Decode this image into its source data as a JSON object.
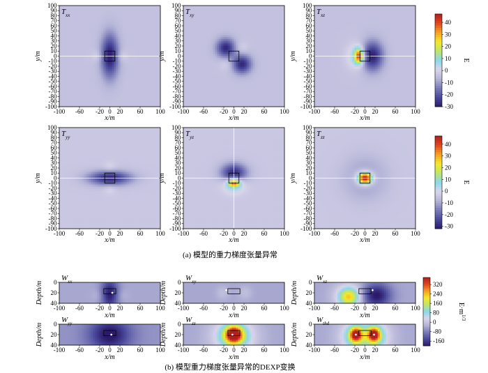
{
  "captions": {
    "a": "(a) 模型的重力梯度张量异常",
    "b": "(b) 模型重力梯度张量异常的DEXP变换"
  },
  "colormap": [
    "#2b1a6b",
    "#4a4a9c",
    "#7b7bb8",
    "#b5b5d8",
    "#d9d6ea",
    "#88d8ea",
    "#bfe56a",
    "#f4e829",
    "#f7a020",
    "#e0451e",
    "#b0201c"
  ],
  "chart_data": [
    {
      "type": "heatmap",
      "group": "a",
      "title": "Txx",
      "title_base": "T",
      "title_sub": "xx",
      "xlabel": "x/m",
      "ylabel": "y/m",
      "xlim": [
        -100,
        100
      ],
      "ylim": [
        -100,
        100
      ],
      "xticks": [
        -100,
        -60,
        -20,
        0,
        20,
        60,
        100
      ],
      "yticks": [
        100,
        90,
        80,
        70,
        60,
        50,
        40,
        30,
        20,
        10,
        0,
        -10,
        -20,
        -30,
        -40,
        -50,
        -60,
        -70,
        -80,
        -90,
        -100
      ],
      "crosshair": "horizontal",
      "anomalies": [
        {
          "x": 0,
          "y": 0,
          "value": -26,
          "sx": 12,
          "sy": 30
        },
        {
          "x": -25,
          "y": 0,
          "value": 4,
          "sx": 8,
          "sy": 8
        },
        {
          "x": 25,
          "y": 0,
          "value": 4,
          "sx": 8,
          "sy": 8
        }
      ],
      "baseline": -4
    },
    {
      "type": "heatmap",
      "group": "a",
      "title": "Txy",
      "title_base": "T",
      "title_sub": "xy",
      "xlabel": "x/m",
      "ylabel": "y/m",
      "xlim": [
        -100,
        100
      ],
      "ylim": [
        -100,
        100
      ],
      "xticks": [
        -100,
        -60,
        -20,
        0,
        20,
        60,
        100
      ],
      "yticks": [
        100,
        90,
        80,
        70,
        60,
        50,
        40,
        30,
        20,
        10,
        0,
        -10,
        -20,
        -30,
        -40,
        -50,
        -60,
        -70,
        -80,
        -90,
        -100
      ],
      "crosshair": "none",
      "anomalies": [
        {
          "x": -16,
          "y": 16,
          "value": -24,
          "sx": 13,
          "sy": 13
        },
        {
          "x": 16,
          "y": -16,
          "value": -24,
          "sx": 13,
          "sy": 13
        },
        {
          "x": 16,
          "y": 16,
          "value": 4,
          "sx": 9,
          "sy": 9
        },
        {
          "x": -16,
          "y": -16,
          "value": 4,
          "sx": 9,
          "sy": 9
        }
      ],
      "baseline": -4
    },
    {
      "type": "heatmap",
      "group": "a",
      "title": "Txz",
      "title_base": "T",
      "title_sub": "xz",
      "xlabel": "x/m",
      "ylabel": "y/m",
      "xlim": [
        -100,
        100
      ],
      "ylim": [
        -100,
        100
      ],
      "xticks": [
        -100,
        -60,
        -20,
        0,
        20,
        60,
        100
      ],
      "yticks": [
        100,
        90,
        80,
        70,
        60,
        50,
        40,
        30,
        20,
        10,
        0,
        -10,
        -20,
        -30,
        -40,
        -50,
        -60,
        -70,
        -80,
        -90,
        -100
      ],
      "crosshair": "horizontal",
      "anomalies": [
        {
          "x": -12,
          "y": 0,
          "value": 40,
          "sx": 6,
          "sy": 10
        },
        {
          "x": -16,
          "y": 0,
          "value": 10,
          "sx": 14,
          "sy": 18
        },
        {
          "x": 14,
          "y": 0,
          "value": -26,
          "sx": 15,
          "sy": 20
        }
      ],
      "baseline": -4
    },
    {
      "type": "heatmap",
      "group": "a",
      "title": "Tyy",
      "title_base": "T",
      "title_sub": "yy",
      "xlabel": "x/m",
      "ylabel": "y/m",
      "xlim": [
        -100,
        100
      ],
      "ylim": [
        -100,
        100
      ],
      "xticks": [
        -100,
        -60,
        -20,
        0,
        20,
        60,
        100
      ],
      "yticks": [
        100,
        90,
        80,
        70,
        60,
        50,
        40,
        30,
        20,
        10,
        0,
        -10,
        -20,
        -30,
        -40,
        -50,
        -60,
        -70,
        -80,
        -90,
        -100
      ],
      "crosshair": "horizontal",
      "anomalies": [
        {
          "x": 0,
          "y": 0,
          "value": -26,
          "sx": 30,
          "sy": 10
        },
        {
          "x": 0,
          "y": 22,
          "value": 4,
          "sx": 9,
          "sy": 7
        },
        {
          "x": 0,
          "y": -22,
          "value": 4,
          "sx": 9,
          "sy": 7
        }
      ],
      "baseline": -4
    },
    {
      "type": "heatmap",
      "group": "a",
      "title": "Tyz",
      "title_base": "T",
      "title_sub": "yz",
      "xlabel": "x/m",
      "ylabel": "y/m",
      "xlim": [
        -100,
        100
      ],
      "ylim": [
        -100,
        100
      ],
      "xticks": [
        -100,
        -60,
        -20,
        0,
        20,
        60,
        100
      ],
      "yticks": [
        100,
        90,
        80,
        70,
        60,
        50,
        40,
        30,
        20,
        10,
        0,
        -10,
        -20,
        -30,
        -40,
        -50,
        -60,
        -70,
        -80,
        -90,
        -100
      ],
      "crosshair": "both",
      "anomalies": [
        {
          "x": 0,
          "y": -10,
          "value": 40,
          "sx": 8,
          "sy": 5
        },
        {
          "x": 0,
          "y": -14,
          "value": 10,
          "sx": 16,
          "sy": 12
        },
        {
          "x": 0,
          "y": 10,
          "value": -26,
          "sx": 18,
          "sy": 13
        }
      ],
      "baseline": -4
    },
    {
      "type": "heatmap",
      "group": "a",
      "title": "Tzz",
      "title_base": "T",
      "title_sub": "zz",
      "xlabel": "x/m",
      "ylabel": "y/m",
      "xlim": [
        -100,
        100
      ],
      "ylim": [
        -100,
        100
      ],
      "xticks": [
        -100,
        -60,
        -20,
        0,
        20,
        60,
        100
      ],
      "yticks": [
        100,
        90,
        80,
        70,
        60,
        50,
        40,
        30,
        20,
        10,
        0,
        -10,
        -20,
        -30,
        -40,
        -50,
        -60,
        -70,
        -80,
        -90,
        -100
      ],
      "crosshair": "horizontal",
      "anomalies": [
        {
          "x": 0,
          "y": 0,
          "value": 48,
          "sx": 9,
          "sy": 7
        },
        {
          "x": 0,
          "y": 0,
          "value": 14,
          "sx": 14,
          "sy": 12
        },
        {
          "x": 0,
          "y": 0,
          "value": -10,
          "sx": 28,
          "sy": 28
        }
      ],
      "baseline": -4
    },
    {
      "type": "heatmap",
      "group": "b",
      "title": "Wxx",
      "title_base": "W",
      "title_sub": "xx",
      "xlabel": "x/m",
      "ylabel": "Depth/m",
      "xlim": [
        -100,
        100
      ],
      "ylim": [
        0,
        40
      ],
      "xticks": [
        -100,
        -60,
        -20,
        0,
        20,
        60,
        100
      ],
      "yticks": [
        0,
        20,
        40
      ],
      "anomalies": [
        {
          "x": 0,
          "y": 22,
          "value": -160,
          "sx": 12,
          "sy": 20
        },
        {
          "x": -22,
          "y": 25,
          "value": 20,
          "sx": 10,
          "sy": 8
        },
        {
          "x": 22,
          "y": 25,
          "value": 20,
          "sx": 10,
          "sy": 8
        }
      ],
      "baseline": -40,
      "point": {
        "x": 5,
        "y": 20
      }
    },
    {
      "type": "heatmap",
      "group": "b",
      "title": "Wxy",
      "title_base": "W",
      "title_sub": "xy",
      "xlabel": "x/m",
      "ylabel": "Depth/m",
      "xlim": [
        -100,
        100
      ],
      "ylim": [
        0,
        40
      ],
      "xticks": [
        -100,
        -60,
        -20,
        0,
        20,
        60,
        100
      ],
      "yticks": [
        0,
        20,
        40
      ],
      "anomalies": [
        {
          "x": -22,
          "y": 20,
          "value": 30,
          "sx": 9,
          "sy": 9
        },
        {
          "x": 22,
          "y": 20,
          "value": 30,
          "sx": 9,
          "sy": 9
        }
      ],
      "baseline": -40,
      "point": {
        "x": -15,
        "y": 15
      }
    },
    {
      "type": "heatmap",
      "group": "b",
      "title": "Wxz",
      "title_base": "W",
      "title_sub": "xz",
      "xlabel": "x/m",
      "ylabel": "Depth/m",
      "xlim": [
        -100,
        100
      ],
      "ylim": [
        0,
        40
      ],
      "xticks": [
        -100,
        -60,
        -20,
        0,
        20,
        60,
        100
      ],
      "yticks": [
        0,
        20,
        40
      ],
      "anomalies": [
        {
          "x": -32,
          "y": 28,
          "value": 220,
          "sx": 14,
          "sy": 12
        },
        {
          "x": -30,
          "y": 25,
          "value": 60,
          "sx": 24,
          "sy": 18
        },
        {
          "x": 22,
          "y": 25,
          "value": -170,
          "sx": 20,
          "sy": 16
        }
      ],
      "baseline": -40,
      "point": {
        "x": 15,
        "y": 15
      }
    },
    {
      "type": "heatmap",
      "group": "b",
      "title": "Wyy",
      "title_base": "W",
      "title_sub": "yy",
      "xlabel": "x/m",
      "ylabel": "Depth/m",
      "xlim": [
        -100,
        100
      ],
      "ylim": [
        0,
        40
      ],
      "xticks": [
        -100,
        -60,
        -20,
        0,
        20,
        60,
        100
      ],
      "yticks": [
        0,
        20,
        40
      ],
      "anomalies": [
        {
          "x": 0,
          "y": 20,
          "value": -150,
          "sx": 28,
          "sy": 22
        }
      ],
      "baseline": -60,
      "point": {
        "x": 3,
        "y": 20
      }
    },
    {
      "type": "heatmap",
      "group": "b",
      "title": "Wzz",
      "title_base": "W",
      "title_sub": "zz",
      "xlabel": "x/m",
      "ylabel": "Depth/m",
      "xlim": [
        -100,
        100
      ],
      "ylim": [
        0,
        40
      ],
      "xticks": [
        -100,
        -60,
        -20,
        0,
        20,
        60,
        100
      ],
      "yticks": [
        0,
        20,
        40
      ],
      "anomalies": [
        {
          "x": 0,
          "y": 20,
          "value": 340,
          "sx": 11,
          "sy": 10
        },
        {
          "x": 0,
          "y": 22,
          "value": 170,
          "sx": 22,
          "sy": 18
        },
        {
          "x": 0,
          "y": 25,
          "value": 60,
          "sx": 35,
          "sy": 30
        }
      ],
      "baseline": -40,
      "point": {
        "x": -3,
        "y": 20
      }
    },
    {
      "type": "heatmap",
      "group": "b",
      "title": "Wthd",
      "title_base": "W",
      "title_sub": "thd",
      "xlabel": "x/m",
      "ylabel": "Depth/m",
      "xlim": [
        -100,
        100
      ],
      "ylim": [
        0,
        40
      ],
      "xticks": [
        -100,
        -60,
        -20,
        0,
        20,
        60,
        100
      ],
      "yticks": [
        0,
        20,
        40
      ],
      "anomalies": [
        {
          "x": -18,
          "y": 20,
          "value": 330,
          "sx": 8,
          "sy": 9
        },
        {
          "x": 18,
          "y": 20,
          "value": 330,
          "sx": 8,
          "sy": 9
        },
        {
          "x": -20,
          "y": 24,
          "value": 140,
          "sx": 18,
          "sy": 18
        },
        {
          "x": 20,
          "y": 24,
          "value": 140,
          "sx": 18,
          "sy": 18
        },
        {
          "x": 0,
          "y": 25,
          "value": 40,
          "sx": 40,
          "sy": 30
        }
      ],
      "baseline": -40,
      "point": {
        "x": 18,
        "y": 20
      },
      "point2": {
        "x": -18,
        "y": 20
      }
    }
  ],
  "colorbars": [
    {
      "id": "cb-a1",
      "unit": "E",
      "range": [
        -30,
        47
      ],
      "ticks": [
        40,
        30,
        20,
        10,
        0,
        -10,
        -20,
        -30
      ]
    },
    {
      "id": "cb-a2",
      "unit": "E",
      "range": [
        -32,
        47
      ],
      "ticks": [
        40,
        30,
        20,
        10,
        0,
        -10,
        -20,
        -30
      ]
    },
    {
      "id": "cb-b",
      "unit": "E·m",
      "unit_sup": "1/3",
      "range": [
        -200,
        380
      ],
      "ticks": [
        320,
        240,
        160,
        80,
        0,
        -80,
        -160
      ]
    }
  ]
}
